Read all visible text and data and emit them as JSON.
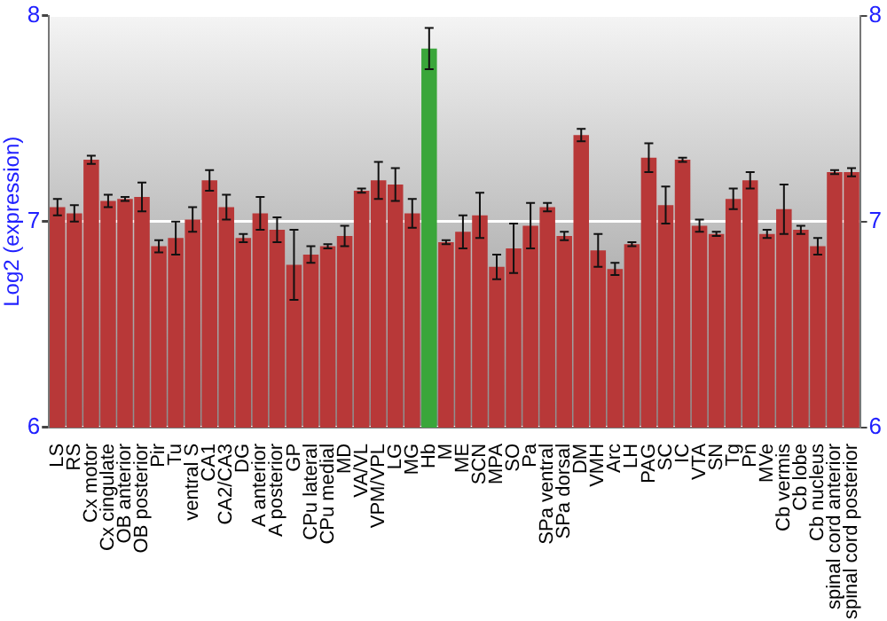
{
  "chart_data": {
    "type": "bar",
    "ylabel": "Log2 (expression)",
    "categories": [
      "LS",
      "RS",
      "Cx motor",
      "Cx cingulate",
      "OB anterior",
      "OB posterior",
      "Pir",
      "Tu",
      "ventral S",
      "CA1",
      "CA2/CA3",
      "DG",
      "A anterior",
      "A posterior",
      "GP",
      "CPu lateral",
      "CPu medial",
      "MD",
      "VA/VL",
      "VPM/VPL",
      "LG",
      "MG",
      "Hb",
      "M",
      "ME",
      "SCN",
      "MPA",
      "SO",
      "Pa",
      "SPa ventral",
      "SPa dorsal",
      "DM",
      "VMH",
      "Arc",
      "LH",
      "PAG",
      "SC",
      "IC",
      "VTA",
      "SN",
      "Tg",
      "Pn",
      "MVe",
      "Cb vermis",
      "Cb lobe",
      "Cb nucleus",
      "spinal cord anterior",
      "spinal cord posterior"
    ],
    "values": [
      7.07,
      7.04,
      7.3,
      7.1,
      7.11,
      7.12,
      6.88,
      6.92,
      7.01,
      7.2,
      7.07,
      6.92,
      7.04,
      6.96,
      6.79,
      6.84,
      6.88,
      6.93,
      7.15,
      7.2,
      7.18,
      7.04,
      7.84,
      6.9,
      6.95,
      7.03,
      6.78,
      6.87,
      6.98,
      7.07,
      6.93,
      7.42,
      6.86,
      6.77,
      6.89,
      7.31,
      7.08,
      7.3,
      6.98,
      6.94,
      7.11,
      7.2,
      6.94,
      7.06,
      6.96,
      6.88,
      7.24,
      7.24
    ],
    "errors": [
      0.04,
      0.04,
      0.02,
      0.03,
      0.01,
      0.07,
      0.03,
      0.08,
      0.06,
      0.05,
      0.06,
      0.02,
      0.08,
      0.06,
      0.17,
      0.04,
      0.01,
      0.05,
      0.01,
      0.09,
      0.08,
      0.07,
      0.1,
      0.01,
      0.08,
      0.11,
      0.06,
      0.12,
      0.11,
      0.02,
      0.02,
      0.03,
      0.08,
      0.03,
      0.01,
      0.07,
      0.09,
      0.01,
      0.03,
      0.01,
      0.05,
      0.04,
      0.02,
      0.12,
      0.02,
      0.04,
      0.01,
      0.02
    ],
    "colors": [
      "#b83838",
      "#b83838",
      "#b83838",
      "#b83838",
      "#b83838",
      "#b83838",
      "#b83838",
      "#b83838",
      "#b83838",
      "#b83838",
      "#b83838",
      "#b83838",
      "#b83838",
      "#b83838",
      "#b83838",
      "#b83838",
      "#b83838",
      "#b83838",
      "#b83838",
      "#b83838",
      "#b83838",
      "#b83838",
      "#3aa63a",
      "#b83838",
      "#b83838",
      "#b83838",
      "#b83838",
      "#b83838",
      "#b83838",
      "#b83838",
      "#b83838",
      "#b83838",
      "#b83838",
      "#b83838",
      "#b83838",
      "#b83838",
      "#b83838",
      "#b83838",
      "#b83838",
      "#b83838",
      "#b83838",
      "#b83838",
      "#b83838",
      "#b83838",
      "#b83838",
      "#b83838",
      "#b83838",
      "#b83838"
    ],
    "ylim": [
      6,
      8
    ],
    "yticks": [
      6,
      7,
      8
    ],
    "y2lim": [
      6,
      8
    ],
    "y2ticks": [
      6,
      7,
      8
    ],
    "grid": "y",
    "legend": false
  }
}
